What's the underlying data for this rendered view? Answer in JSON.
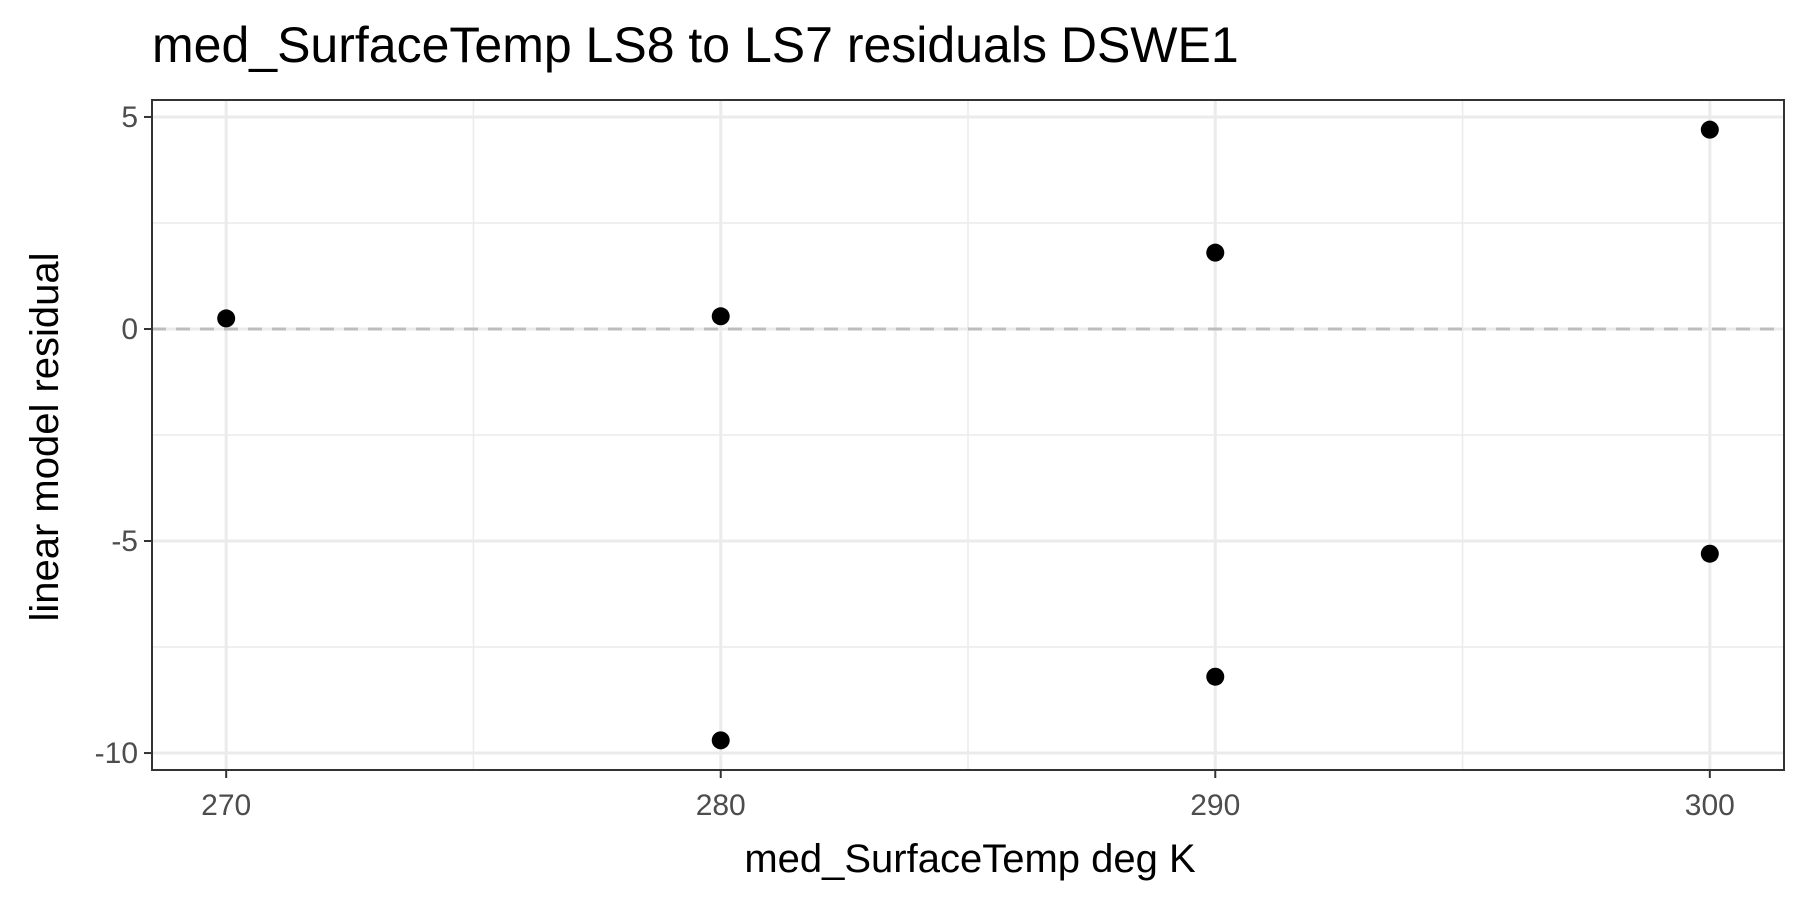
{
  "chart_data": {
    "type": "scatter",
    "title": "med_SurfaceTemp LS8 to LS7 residuals DSWE1",
    "xlabel": "med_SurfaceTemp  deg K",
    "ylabel": "linear model residual",
    "xlim": [
      268.5,
      301.5
    ],
    "ylim": [
      -10.4,
      5.4
    ],
    "x_ticks": [
      270,
      280,
      290,
      300
    ],
    "x_tick_labels": [
      "270",
      "280",
      "290",
      "300"
    ],
    "y_ticks": [
      5,
      0,
      -5,
      -10
    ],
    "y_tick_labels": [
      "5",
      "0",
      "-5",
      "-10"
    ],
    "x_minor": [
      275,
      285,
      295
    ],
    "y_minor": [
      2.5,
      -2.5,
      -7.5
    ],
    "reference_line": {
      "y": 0,
      "style": "dashed",
      "color": "#bdbdbd"
    },
    "grid": true,
    "point_color": "#000000",
    "points": [
      {
        "x": 270,
        "y": 0.25
      },
      {
        "x": 280,
        "y": 0.3
      },
      {
        "x": 280,
        "y": -9.7
      },
      {
        "x": 290,
        "y": 1.8
      },
      {
        "x": 290,
        "y": -8.2
      },
      {
        "x": 300,
        "y": 4.7
      },
      {
        "x": 300,
        "y": -5.3
      }
    ]
  }
}
